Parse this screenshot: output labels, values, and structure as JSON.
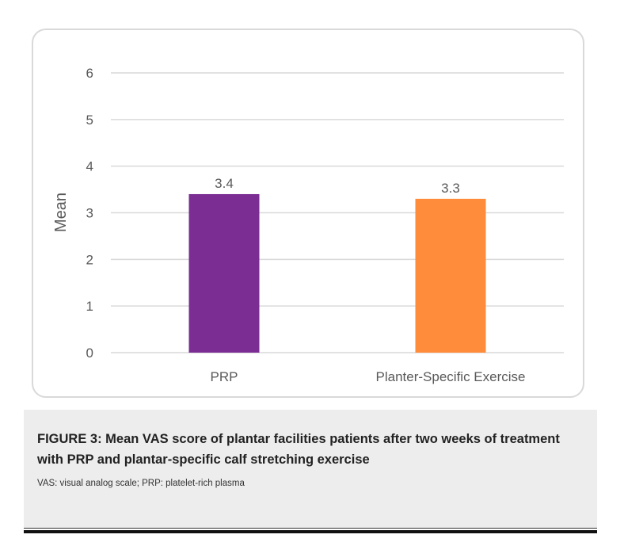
{
  "chart_data": {
    "type": "bar",
    "categories": [
      "PRP",
      "Planter-Specific Exercise"
    ],
    "values": [
      3.4,
      3.3
    ],
    "value_labels": [
      "3.4",
      "3.3"
    ],
    "colors": [
      "#7b2d94",
      "#ff8c3a"
    ],
    "title": "",
    "xlabel": "",
    "ylabel": "Mean",
    "ylim": [
      0,
      6
    ],
    "yticks": [
      0,
      1,
      2,
      3,
      4,
      5,
      6
    ],
    "grid": true,
    "legend": "none"
  },
  "caption": {
    "title": "FIGURE 3: Mean VAS score of plantar facilities patients after two weeks of treatment with PRP and plantar-specific calf stretching exercise",
    "note": "VAS: visual analog scale; PRP: platelet-rich plasma"
  }
}
